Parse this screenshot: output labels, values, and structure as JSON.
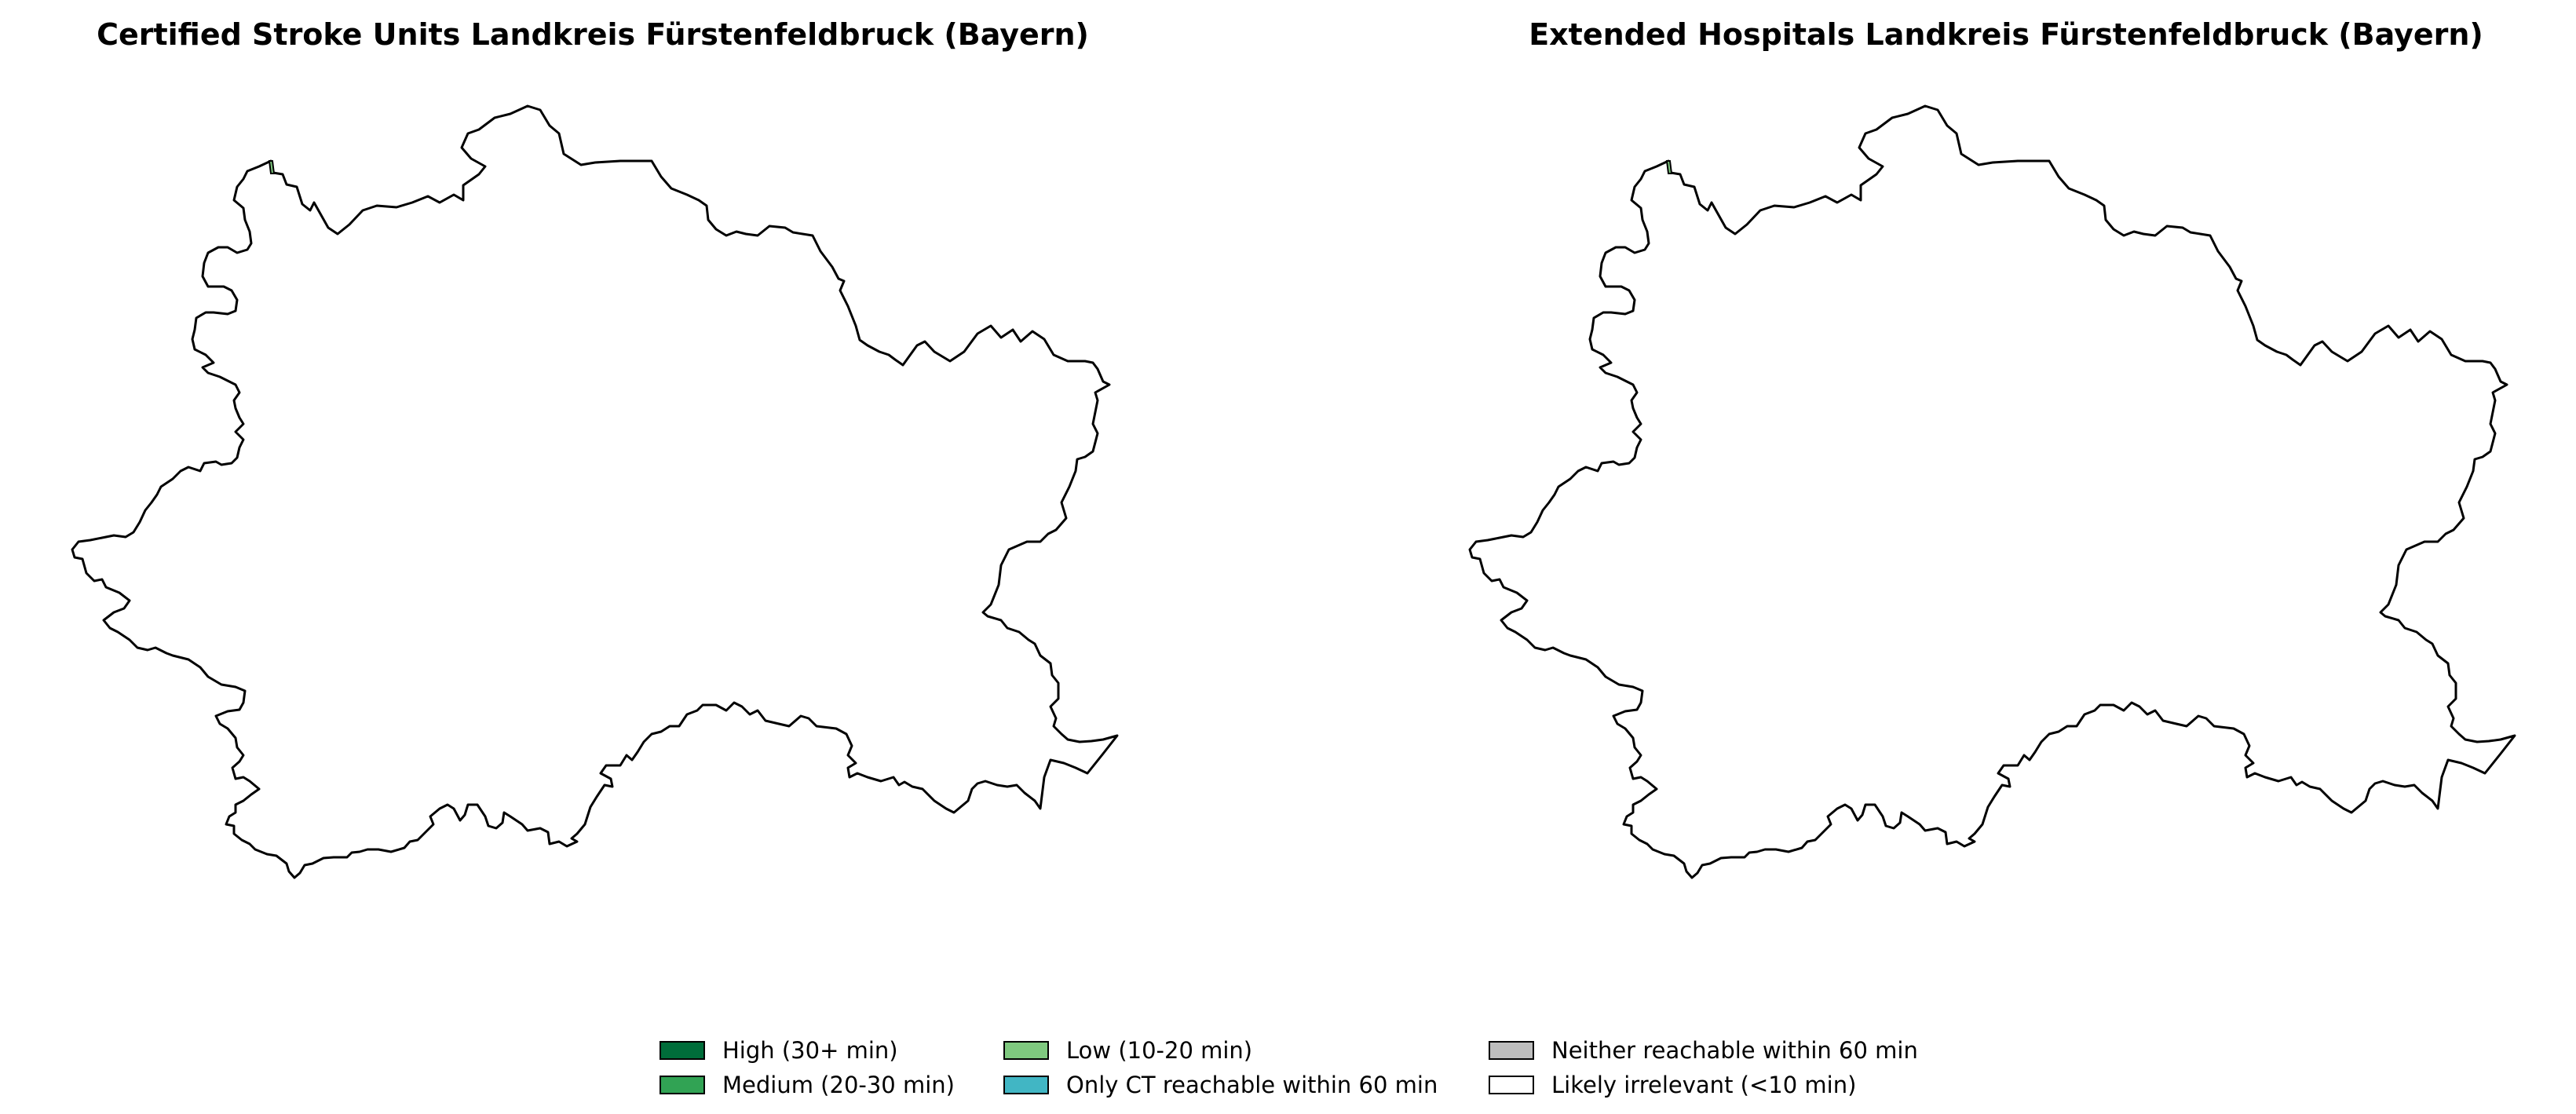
{
  "maps": [
    {
      "title": "Certified Stroke Units Landkreis Fürstenfeldbruck (Bayern)"
    },
    {
      "title": "Extended Hospitals Landkreis Fürstenfeldbruck (Bayern)"
    }
  ],
  "region_fill": "#ffffff",
  "highlight_fill": "#7fc97f",
  "legend": {
    "items": [
      {
        "label": "High (30+ min)",
        "color": "#006d3a"
      },
      {
        "label": "Medium (20-30 min)",
        "color": "#31a354"
      },
      {
        "label": "Low (10-20 min)",
        "color": "#7fc97f"
      },
      {
        "label": "Only CT reachable within 60 min",
        "color": "#41b6c4"
      },
      {
        "label": "Neither reachable within 60 min",
        "color": "#bdbdbd"
      },
      {
        "label": "Likely irrelevant (<10 min)",
        "color": "#ffffff"
      }
    ]
  }
}
